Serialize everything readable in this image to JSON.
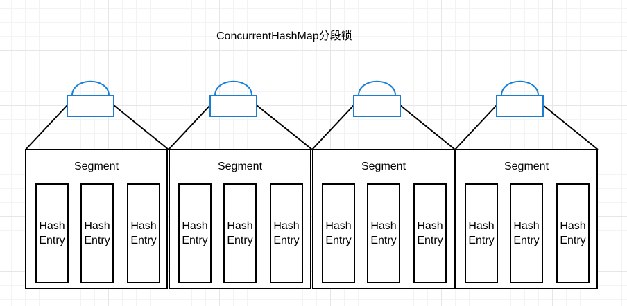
{
  "diagram": {
    "title": "ConcurrentHashMap分段锁",
    "lock_color": "#1a7fd4",
    "segments": [
      {
        "label": "Segment",
        "entries": [
          {
            "line1": "Hash",
            "line2": "Entry"
          },
          {
            "line1": "Hash",
            "line2": "Entry"
          },
          {
            "line1": "Hash",
            "line2": "Entry"
          }
        ]
      },
      {
        "label": "Segment",
        "entries": [
          {
            "line1": "Hash",
            "line2": "Entry"
          },
          {
            "line1": "Hash",
            "line2": "Entry"
          },
          {
            "line1": "Hash",
            "line2": "Entry"
          }
        ]
      },
      {
        "label": "Segment",
        "entries": [
          {
            "line1": "Hash",
            "line2": "Entry"
          },
          {
            "line1": "Hash",
            "line2": "Entry"
          },
          {
            "line1": "Hash",
            "line2": "Entry"
          }
        ]
      },
      {
        "label": "Segment",
        "entries": [
          {
            "line1": "Hash",
            "line2": "Entry"
          },
          {
            "line1": "Hash",
            "line2": "Entry"
          },
          {
            "line1": "Hash",
            "line2": "Entry"
          }
        ]
      }
    ]
  }
}
